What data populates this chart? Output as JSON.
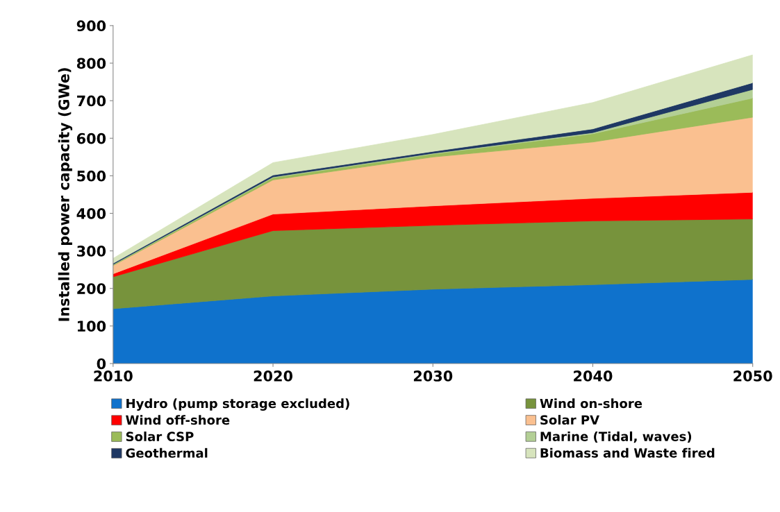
{
  "chart_data": {
    "type": "area",
    "stacked": true,
    "ylabel": "Installed power capacity (GWe)",
    "x": [
      2010,
      2020,
      2030,
      2040,
      2050
    ],
    "xlim": [
      2010,
      2050
    ],
    "xticks": [
      2010,
      2020,
      2030,
      2040,
      2050
    ],
    "ylim": [
      0,
      900
    ],
    "yticks": [
      0,
      100,
      200,
      300,
      400,
      500,
      600,
      700,
      800,
      900
    ],
    "grid": false,
    "legend": "bottom",
    "series": [
      {
        "name": "Hydro (pump storage excluded)",
        "color": "#0f72cc",
        "values": [
          146,
          180,
          198,
          210,
          224
        ]
      },
      {
        "name": "Wind on-shore",
        "color": "#77933c",
        "values": [
          85,
          174,
          170,
          170,
          161
        ]
      },
      {
        "name": "Wind off-shore",
        "color": "#ff0000",
        "values": [
          8,
          44,
          52,
          60,
          71
        ]
      },
      {
        "name": "Solar PV",
        "color": "#fac090",
        "values": [
          22,
          91,
          130,
          150,
          200
        ]
      },
      {
        "name": "Solar CSP",
        "color": "#9bbb59",
        "values": [
          2,
          6,
          8,
          22,
          51
        ]
      },
      {
        "name": "Marine (Tidal, waves)",
        "color": "#b3cf95",
        "values": [
          1,
          2,
          2,
          3,
          23
        ]
      },
      {
        "name": "Geothermal",
        "color": "#1f3864",
        "values": [
          3,
          5,
          5,
          10,
          18
        ]
      },
      {
        "name": "Biomass and Waste fired",
        "color": "#d7e4bd",
        "values": [
          13,
          33,
          45,
          70,
          74
        ]
      }
    ]
  }
}
